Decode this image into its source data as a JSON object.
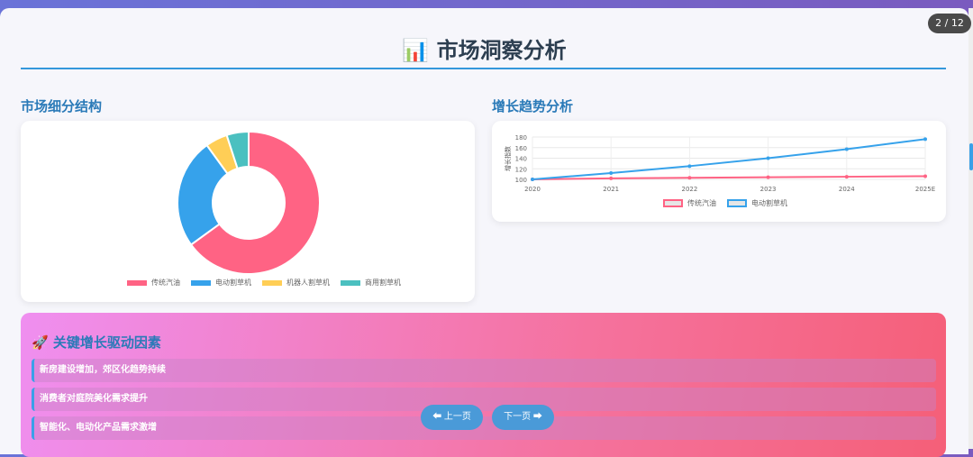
{
  "page_indicator": "2 / 12",
  "title": {
    "icon": "bar-chart-icon",
    "icon_glyph": "📊",
    "text": "市场洞察分析"
  },
  "left_section": {
    "title": "市场细分结构"
  },
  "right_section": {
    "title": "增长趋势分析"
  },
  "chart_data": [
    {
      "type": "pie",
      "variant": "doughnut",
      "labels": [
        "传统汽油",
        "电动割草机",
        "机器人割草机",
        "商用割草机"
      ],
      "values": [
        65,
        25,
        5,
        5
      ],
      "colors": [
        "#ff6384",
        "#36a2eb",
        "#ffce56",
        "#4bc0c0"
      ],
      "legend": "bottom"
    },
    {
      "type": "line",
      "categories": [
        "2020",
        "2021",
        "2022",
        "2023",
        "2024",
        "2025E"
      ],
      "ylabel": "增长指数",
      "ylim": [
        100,
        180
      ],
      "yticks": [
        "100",
        "120",
        "140",
        "160",
        "180"
      ],
      "grid": true,
      "legend": "bottom",
      "series": [
        {
          "name": "传统汽油",
          "values": [
            100,
            102,
            103,
            104,
            105,
            106
          ],
          "color": "#ff6384"
        },
        {
          "name": "电动割草机",
          "values": [
            100,
            112,
            125,
            140,
            157,
            176
          ],
          "color": "#36a2eb"
        }
      ]
    }
  ],
  "drivers": {
    "icon": "rocket-icon",
    "icon_glyph": "🚀",
    "title": "关键增长驱动因素",
    "items": [
      "新房建设增加，郊区化趋势持续",
      "消费者对庭院美化需求提升",
      "智能化、电动化产品需求激增"
    ]
  },
  "nav": {
    "prev": "⬅ 上一页",
    "next": "下一页 ➡"
  }
}
